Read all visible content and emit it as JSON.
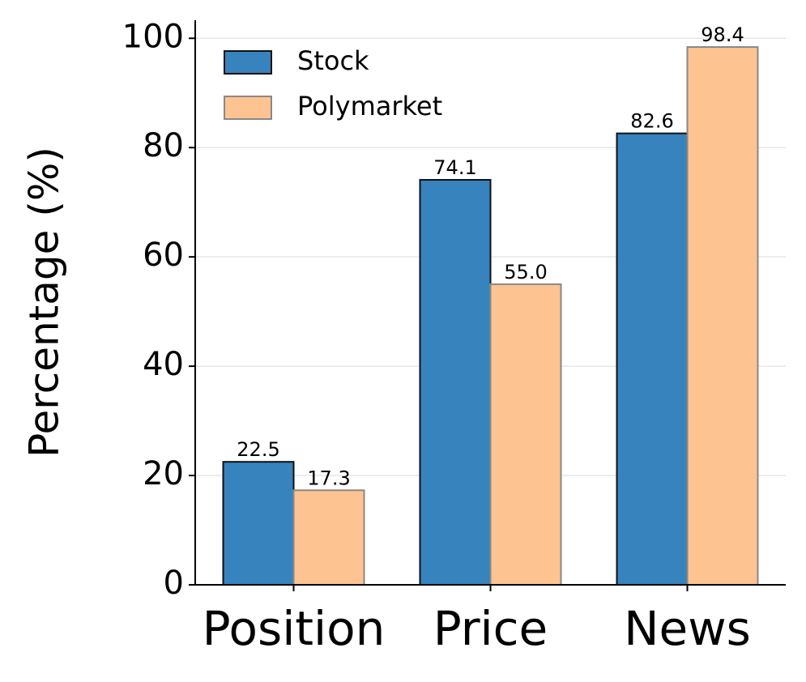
{
  "chart_data": {
    "type": "bar",
    "y_label": "Percentage (%)",
    "categories": [
      "Position",
      "Price",
      "News"
    ],
    "series": [
      {
        "name": "Stock",
        "color": "#3783bd",
        "values": [
          22.5,
          74.1,
          82.6
        ],
        "value_labels": [
          "22.5",
          "74.1",
          "82.6"
        ]
      },
      {
        "name": "Polymarket",
        "color": "#fdc391",
        "values": [
          17.3,
          55.0,
          98.4
        ],
        "value_labels": [
          "17.3",
          "55.0",
          "98.4"
        ]
      }
    ],
    "ylim": [
      0,
      103.3
    ],
    "yticks": [
      0,
      20,
      40,
      60,
      80,
      100
    ],
    "grid": true,
    "legend": "upper left"
  }
}
